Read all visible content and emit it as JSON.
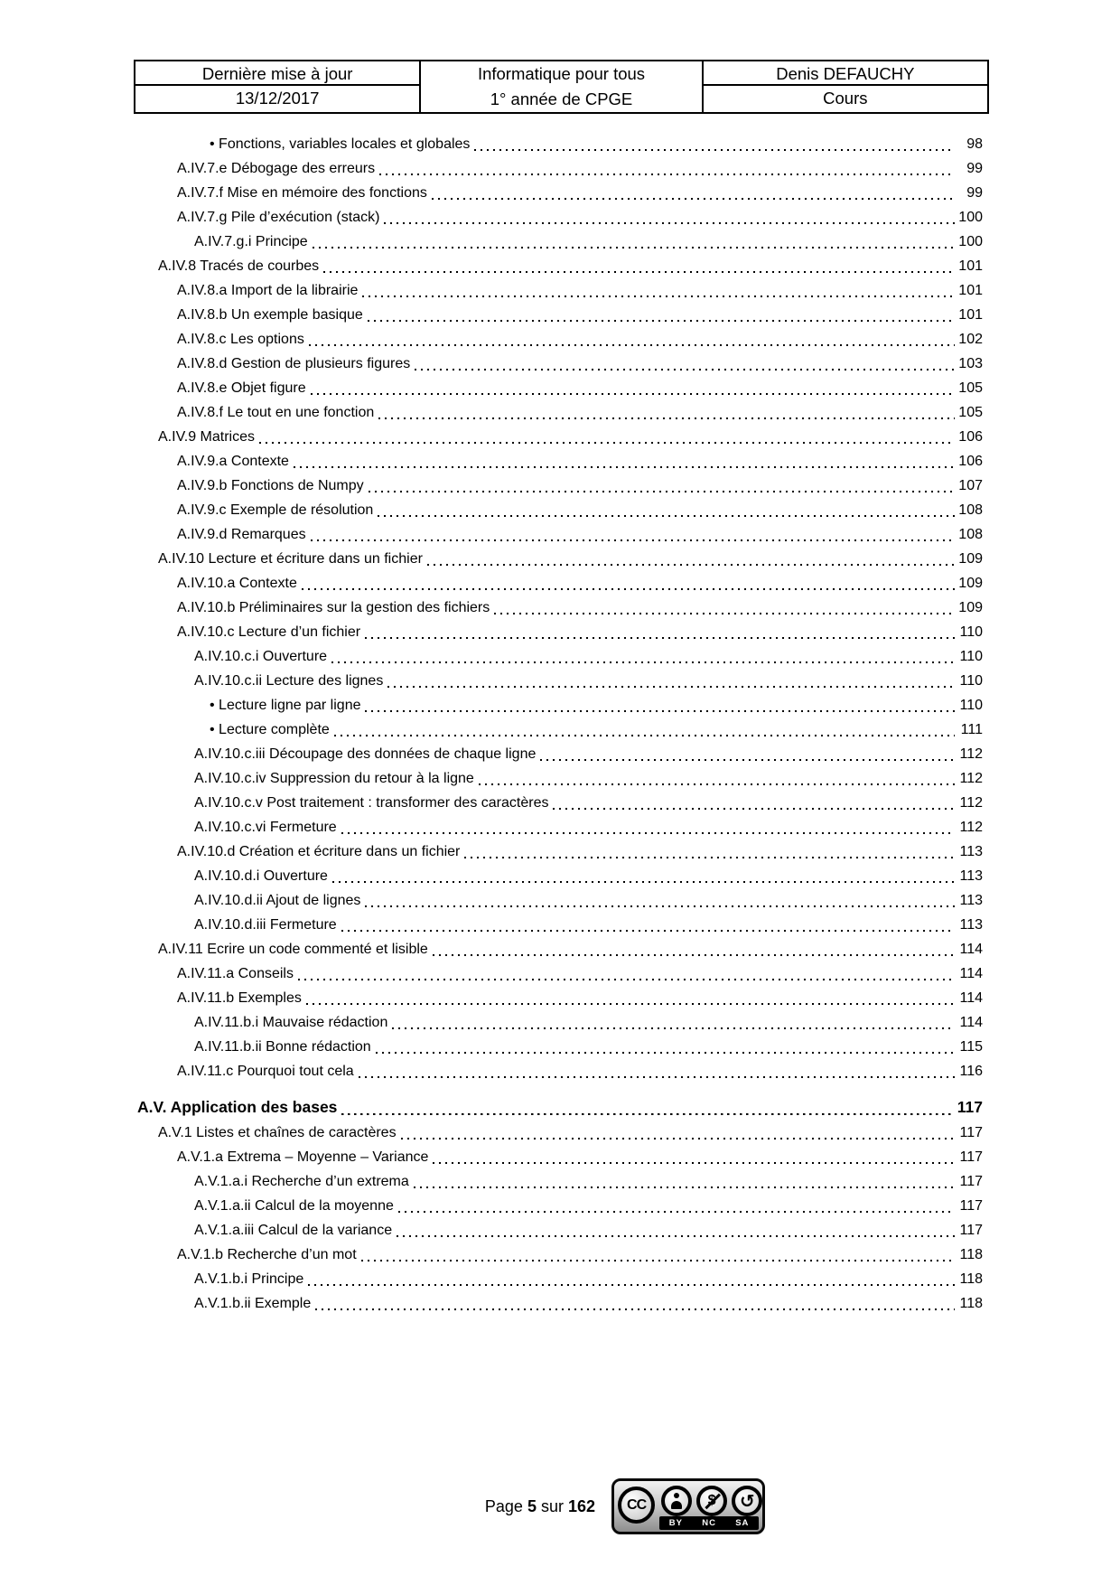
{
  "header": {
    "left": {
      "title": "Dernière mise à jour",
      "value": "13/12/2017"
    },
    "middle": {
      "line1": "Informatique pour tous",
      "line2": "1° année de CPGE"
    },
    "right": {
      "title": "Denis DEFAUCHY",
      "value": "Cours"
    }
  },
  "toc": {
    "bullet_char": "•",
    "entries": [
      {
        "label": "Fonctions, variables locales et globales",
        "page": "98",
        "level": 4,
        "bullet": true
      },
      {
        "label": "A.IV.7.e Débogage des erreurs",
        "page": "99",
        "level": 2
      },
      {
        "label": "A.IV.7.f Mise en mémoire des fonctions",
        "page": "99",
        "level": 2
      },
      {
        "label": "A.IV.7.g Pile d’exécution (stack)",
        "page": "100",
        "level": 2
      },
      {
        "label": "A.IV.7.g.i Principe",
        "page": "100",
        "level": 3
      },
      {
        "label": "A.IV.8 Tracés de courbes",
        "page": "101",
        "level": 1
      },
      {
        "label": "A.IV.8.a Import de la librairie",
        "page": "101",
        "level": 2
      },
      {
        "label": "A.IV.8.b Un exemple basique",
        "page": "101",
        "level": 2
      },
      {
        "label": "A.IV.8.c Les options",
        "page": "102",
        "level": 2
      },
      {
        "label": "A.IV.8.d Gestion de plusieurs figures",
        "page": "103",
        "level": 2
      },
      {
        "label": "A.IV.8.e Objet figure",
        "page": "105",
        "level": 2
      },
      {
        "label": "A.IV.8.f Le tout en une fonction",
        "page": "105",
        "level": 2
      },
      {
        "label": "A.IV.9 Matrices",
        "page": "106",
        "level": 1
      },
      {
        "label": "A.IV.9.a Contexte",
        "page": "106",
        "level": 2
      },
      {
        "label": "A.IV.9.b Fonctions de Numpy",
        "page": "107",
        "level": 2
      },
      {
        "label": "A.IV.9.c Exemple de résolution",
        "page": "108",
        "level": 2
      },
      {
        "label": "A.IV.9.d Remarques",
        "page": "108",
        "level": 2
      },
      {
        "label": "A.IV.10 Lecture et écriture dans un fichier",
        "page": "109",
        "level": 1
      },
      {
        "label": "A.IV.10.a Contexte",
        "page": "109",
        "level": 2
      },
      {
        "label": "A.IV.10.b Préliminaires sur la gestion des fichiers",
        "page": "109",
        "level": 2
      },
      {
        "label": "A.IV.10.c Lecture d’un fichier",
        "page": "110",
        "level": 2
      },
      {
        "label": "A.IV.10.c.i Ouverture",
        "page": "110",
        "level": 3
      },
      {
        "label": "A.IV.10.c.ii Lecture des lignes",
        "page": "110",
        "level": 3
      },
      {
        "label": "Lecture ligne par ligne",
        "page": "110",
        "level": 4,
        "bullet": true
      },
      {
        "label": "Lecture complète",
        "page": "111",
        "level": 4,
        "bullet": true
      },
      {
        "label": "A.IV.10.c.iii Découpage des données de chaque ligne",
        "page": "112",
        "level": 3
      },
      {
        "label": "A.IV.10.c.iv Suppression du retour à la ligne",
        "page": "112",
        "level": 3
      },
      {
        "label": "A.IV.10.c.v Post traitement : transformer des caractères",
        "page": "112",
        "level": 3
      },
      {
        "label": "A.IV.10.c.vi Fermeture",
        "page": "112",
        "level": 3
      },
      {
        "label": "A.IV.10.d Création et écriture dans un fichier",
        "page": "113",
        "level": 2
      },
      {
        "label": "A.IV.10.d.i Ouverture",
        "page": "113",
        "level": 3
      },
      {
        "label": "A.IV.10.d.ii Ajout de lignes",
        "page": "113",
        "level": 3
      },
      {
        "label": "A.IV.10.d.iii Fermeture",
        "page": "113",
        "level": 3
      },
      {
        "label": "A.IV.11 Ecrire un code commenté et lisible",
        "page": "114",
        "level": 1
      },
      {
        "label": "A.IV.11.a Conseils",
        "page": "114",
        "level": 2
      },
      {
        "label": "A.IV.11.b Exemples",
        "page": "114",
        "level": 2
      },
      {
        "label": "A.IV.11.b.i Mauvaise rédaction",
        "page": "114",
        "level": 3
      },
      {
        "label": "A.IV.11.b.ii Bonne rédaction",
        "page": "115",
        "level": 3
      },
      {
        "label": "A.IV.11.c Pourquoi tout cela",
        "page": "116",
        "level": 2
      },
      {
        "label": "A.V. Application des bases",
        "page": "117",
        "level": 0
      },
      {
        "label": "A.V.1 Listes et chaînes de caractères",
        "page": "117",
        "level": 1
      },
      {
        "label": "A.V.1.a Extrema – Moyenne – Variance",
        "page": "117",
        "level": 2
      },
      {
        "label": "A.V.1.a.i Recherche d’un extrema",
        "page": "117",
        "level": 3
      },
      {
        "label": "A.V.1.a.ii Calcul de la moyenne",
        "page": "117",
        "level": 3
      },
      {
        "label": "A.V.1.a.iii Calcul de la variance",
        "page": "117",
        "level": 3
      },
      {
        "label": "A.V.1.b Recherche d’un mot",
        "page": "118",
        "level": 2
      },
      {
        "label": "A.V.1.b.i Principe",
        "page": "118",
        "level": 3
      },
      {
        "label": "A.V.1.b.ii Exemple",
        "page": "118",
        "level": 3
      }
    ]
  },
  "footer": {
    "page_label": "Page",
    "page_current": "5",
    "of_label": "sur",
    "page_total": "162",
    "cc": {
      "cc_label": "CC",
      "nc_glyph": "$",
      "sa_glyph": "↻",
      "labels": [
        "BY",
        "NC",
        "SA"
      ]
    }
  }
}
